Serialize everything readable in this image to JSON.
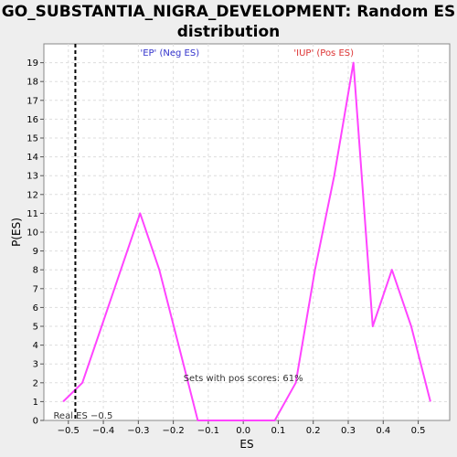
{
  "chart_data": {
    "type": "line",
    "title_line1": "GO_SUBSTANTIA_NIGRA_DEVELOPMENT: Random ES",
    "title_line2": "distribution",
    "xlabel": "ES",
    "ylabel": "P(ES)",
    "xlim": [
      -0.57,
      0.59
    ],
    "ylim": [
      0,
      20
    ],
    "x_ticks": [
      -0.5,
      -0.4,
      -0.3,
      -0.2,
      -0.1,
      0.0,
      0.1,
      0.2,
      0.3,
      0.4,
      0.5
    ],
    "x_tick_labels": [
      "−0.5",
      "−0.4",
      "−0.3",
      "−0.2",
      "−0.1",
      "0.0",
      "0.1",
      "0.2",
      "0.3",
      "0.4",
      "0.5"
    ],
    "y_ticks": [
      0,
      1,
      2,
      3,
      4,
      5,
      6,
      7,
      8,
      9,
      10,
      11,
      12,
      13,
      14,
      15,
      16,
      17,
      18,
      19
    ],
    "grid": true,
    "series": [
      {
        "color": "#ff44ff",
        "x": [
          -0.515,
          -0.46,
          -0.405,
          -0.35,
          -0.295,
          -0.24,
          -0.185,
          -0.13,
          -0.075,
          -0.02,
          0.035,
          0.09,
          0.15,
          0.205,
          0.26,
          0.315,
          0.37,
          0.425,
          0.48,
          0.535
        ],
        "y": [
          1,
          2,
          5,
          8,
          11,
          8,
          4,
          0,
          0,
          0,
          0,
          0,
          2,
          8,
          13,
          19,
          5,
          8,
          5,
          1
        ]
      }
    ],
    "real_es": -0.48,
    "real_es_color": "#000000",
    "annotations": {
      "neg_label": "'EP' (Neg ES)",
      "neg_color": "#3333cc",
      "pos_label": "'IUP' (Pos ES)",
      "pos_color": "#dd3333",
      "pos_scores": "Sets with pos scores: 61%",
      "real_es_label": "Real ES −0.5"
    }
  }
}
